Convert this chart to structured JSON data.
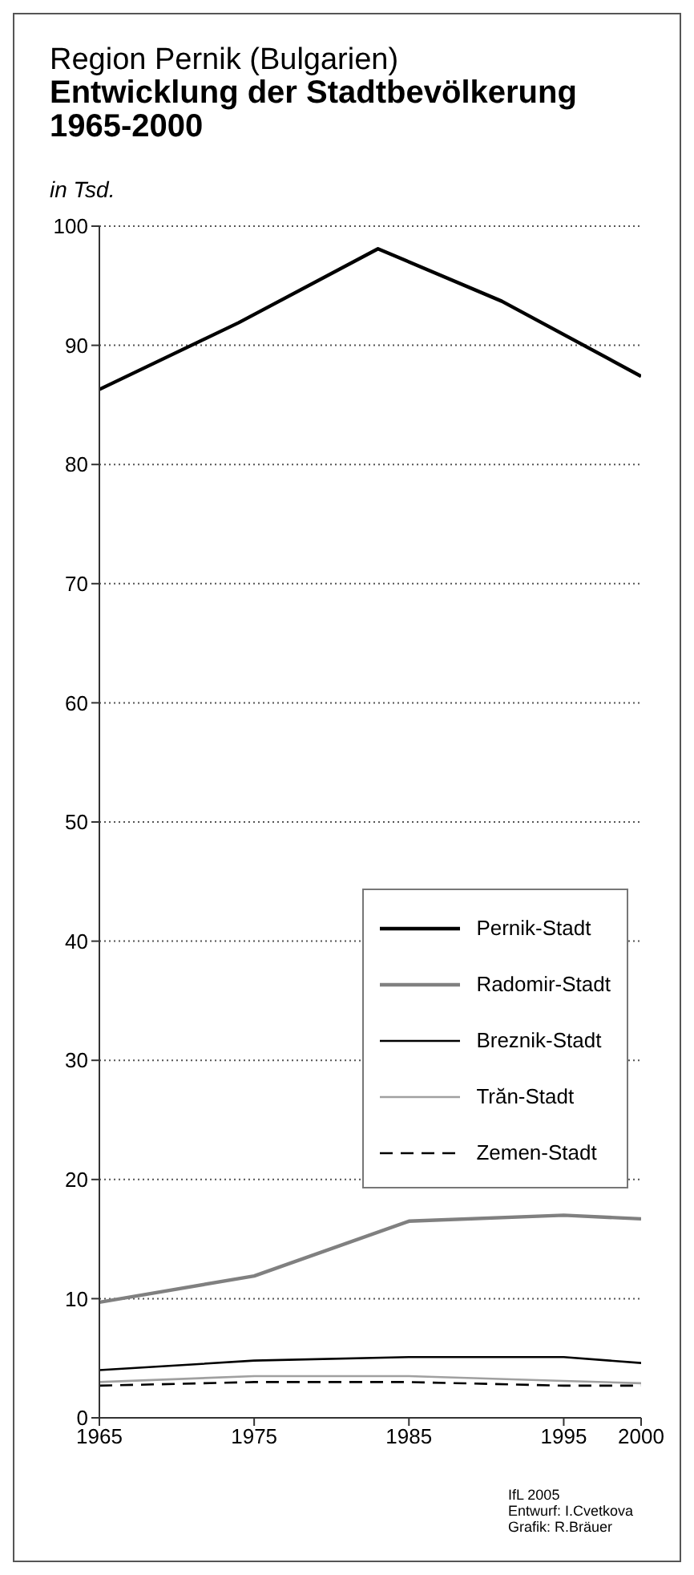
{
  "chart_data": {
    "type": "line",
    "title": "Region Pernik (Bulgarien)",
    "subtitle": "Entwicklung der Stadtbevölkerung 1965-2000",
    "ylabel": "in Tsd.",
    "x": [
      1965,
      1975,
      1985,
      1995,
      2000
    ],
    "series": [
      {
        "name": "Pernik-Stadt",
        "color": "#000000",
        "x": [
          1965,
          1974,
          1983,
          1991,
          2000
        ],
        "values": [
          86.3,
          91.9,
          98.1,
          93.7,
          87.4
        ]
      },
      {
        "name": "Radomir-Stadt",
        "color": "#808080",
        "values": [
          9.7,
          11.9,
          16.5,
          17.0,
          16.7
        ]
      },
      {
        "name": "Breznik-Stadt",
        "color": "#000000",
        "values": [
          4.0,
          4.8,
          5.1,
          5.1,
          4.6
        ]
      },
      {
        "name": "Trăn-Stadt",
        "color": "#a0a0a0",
        "values": [
          3.0,
          3.5,
          3.5,
          3.1,
          2.9
        ]
      },
      {
        "name": "Zemen-Stadt",
        "color": "#000000",
        "values": [
          2.7,
          3.0,
          3.0,
          2.7,
          2.7
        ],
        "line_style": "dashed"
      }
    ],
    "xlim": [
      1965,
      2000
    ],
    "xticks": [
      1965,
      1975,
      1985,
      1995,
      2000
    ],
    "ylim": [
      0,
      100
    ],
    "yticks": [
      0,
      10,
      20,
      30,
      40,
      50,
      60,
      70,
      80,
      90,
      100
    ],
    "grid": "y",
    "legend": "right",
    "line_style": "solid",
    "annotations": [
      "IfL 2005",
      "Entwurf: I.Cvetkova",
      "Grafik: R.Bräuer"
    ]
  }
}
